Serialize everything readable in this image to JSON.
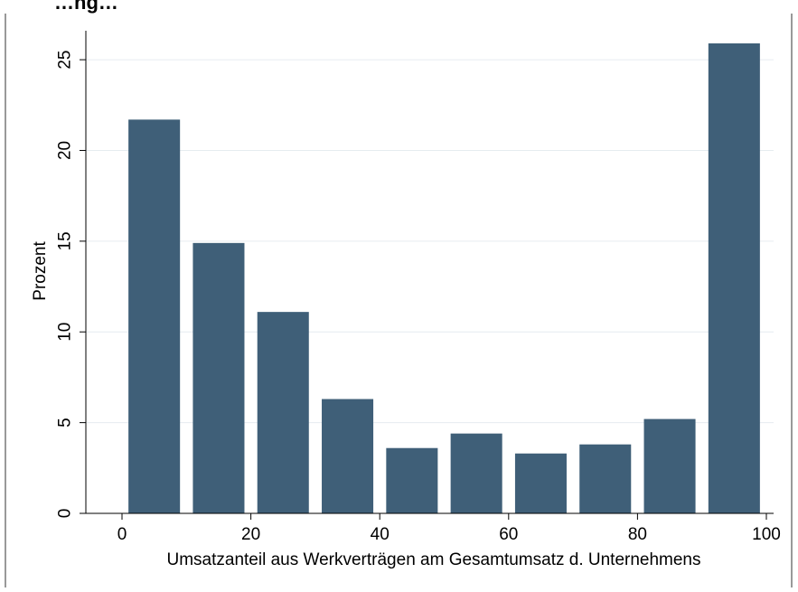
{
  "chart_data": {
    "type": "bar",
    "title": "…ng…",
    "xlabel": "Umsatzanteil aus Werkverträgen am Gesamtumsatz d. Unternehmens",
    "ylabel": "Prozent",
    "xlim": [
      0,
      100
    ],
    "ylim": [
      0,
      26
    ],
    "xticks": [
      0,
      20,
      40,
      60,
      80,
      100
    ],
    "yticks": [
      0,
      5,
      10,
      15,
      20,
      25
    ],
    "grid": true,
    "bar_color": "#3f5f78",
    "bins": [
      {
        "x0": 1,
        "x1": 9,
        "value": 21.7
      },
      {
        "x0": 11,
        "x1": 19,
        "value": 14.9
      },
      {
        "x0": 21,
        "x1": 29,
        "value": 11.1
      },
      {
        "x0": 31,
        "x1": 39,
        "value": 6.3
      },
      {
        "x0": 41,
        "x1": 49,
        "value": 3.6
      },
      {
        "x0": 51,
        "x1": 59,
        "value": 4.4
      },
      {
        "x0": 61,
        "x1": 69,
        "value": 3.3
      },
      {
        "x0": 71,
        "x1": 79,
        "value": 3.8
      },
      {
        "x0": 81,
        "x1": 89,
        "value": 5.2
      },
      {
        "x0": 91,
        "x1": 99,
        "value": 25.9
      }
    ]
  }
}
